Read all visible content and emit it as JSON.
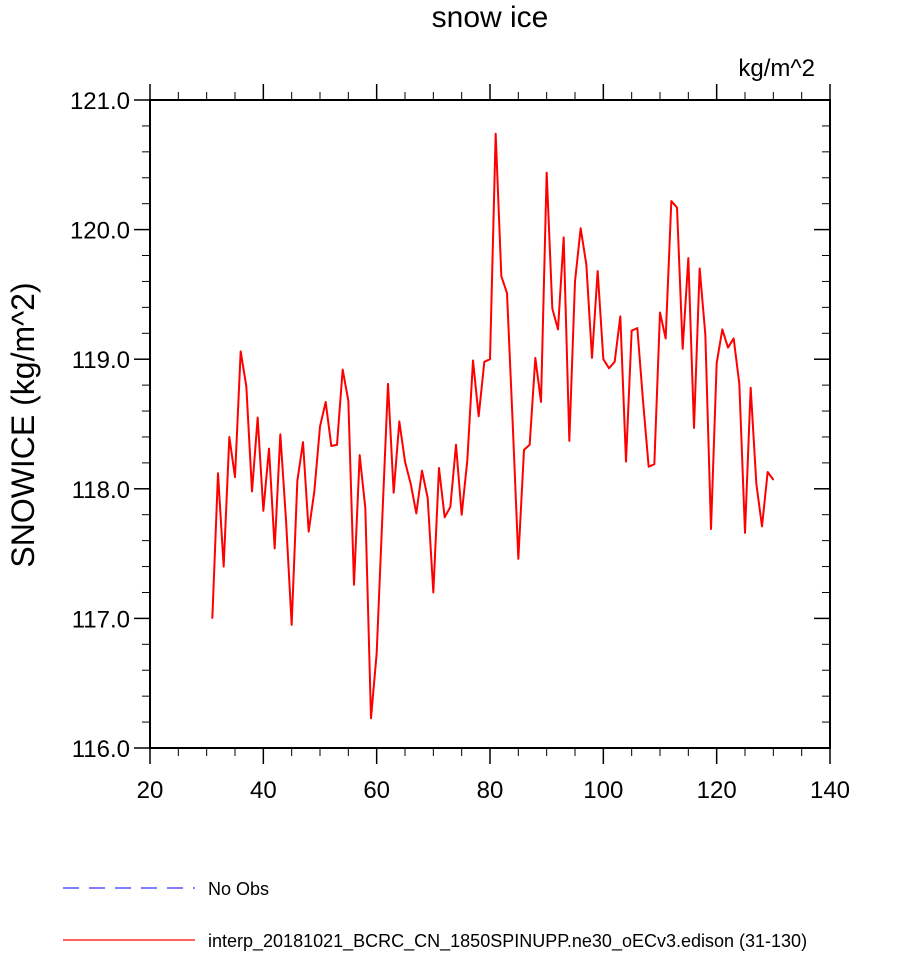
{
  "chart_data": {
    "type": "line",
    "title": "snow ice",
    "units": "kg/m^2",
    "ylabel": "SNOWICE  (kg/m^2)",
    "xlabel": "",
    "xlim": [
      20,
      140
    ],
    "ylim": [
      116.0,
      121.0
    ],
    "x_ticks": [
      20,
      40,
      60,
      80,
      100,
      120,
      140
    ],
    "y_ticks": [
      116.0,
      117.0,
      118.0,
      119.0,
      120.0,
      121.0
    ],
    "y_tick_labels": [
      "116.0",
      "117.0",
      "118.0",
      "119.0",
      "120.0",
      "121.0"
    ],
    "x_minor_step": 5,
    "y_minor_step": 0.2,
    "grid": false,
    "legend_position": "bottom-left",
    "series": [
      {
        "name": "No Obs",
        "color": "#3333ff",
        "style": "dashed",
        "x": [],
        "values": []
      },
      {
        "name": "interp_20181021_BCRC_CN_1850SPINUPP.ne30_oECv3.edison (31-130)",
        "color": "#ff0000",
        "style": "solid",
        "x": [
          31,
          32,
          33,
          34,
          35,
          36,
          37,
          38,
          39,
          40,
          41,
          42,
          43,
          44,
          45,
          46,
          47,
          48,
          49,
          50,
          51,
          52,
          53,
          54,
          55,
          56,
          57,
          58,
          59,
          60,
          61,
          62,
          63,
          64,
          65,
          66,
          67,
          68,
          69,
          70,
          71,
          72,
          73,
          74,
          75,
          76,
          77,
          78,
          79,
          80,
          81,
          82,
          83,
          84,
          85,
          86,
          87,
          88,
          89,
          90,
          91,
          92,
          93,
          94,
          95,
          96,
          97,
          98,
          99,
          100,
          101,
          102,
          103,
          104,
          105,
          106,
          107,
          108,
          109,
          110,
          111,
          112,
          113,
          114,
          115,
          116,
          117,
          118,
          119,
          120,
          121,
          122,
          123,
          124,
          125,
          126,
          127,
          128,
          129,
          130
        ],
        "values": [
          117.0,
          118.12,
          117.4,
          118.4,
          118.09,
          119.06,
          118.79,
          117.98,
          118.55,
          117.83,
          118.31,
          117.54,
          118.42,
          117.76,
          116.95,
          118.06,
          118.36,
          117.67,
          117.98,
          118.48,
          118.67,
          118.33,
          118.34,
          118.92,
          118.68,
          117.26,
          118.26,
          117.85,
          116.23,
          116.73,
          117.78,
          118.81,
          117.97,
          118.52,
          118.21,
          118.04,
          117.81,
          118.14,
          117.93,
          117.2,
          118.16,
          117.78,
          117.86,
          118.34,
          117.8,
          118.22,
          118.99,
          118.56,
          118.98,
          119.0,
          120.74,
          119.64,
          119.51,
          118.51,
          117.46,
          118.3,
          118.34,
          119.01,
          118.67,
          120.44,
          119.39,
          119.23,
          119.94,
          118.37,
          119.6,
          120.01,
          119.73,
          119.01,
          119.68,
          119.0,
          118.93,
          118.98,
          119.33,
          118.21,
          119.22,
          119.24,
          118.68,
          118.17,
          118.19,
          119.36,
          119.16,
          120.22,
          120.17,
          119.08,
          119.78,
          118.47,
          119.7,
          119.19,
          117.69,
          118.97,
          119.23,
          119.09,
          119.16,
          118.81,
          117.66,
          118.78,
          118.04,
          117.71,
          118.13,
          118.07
        ]
      }
    ]
  }
}
